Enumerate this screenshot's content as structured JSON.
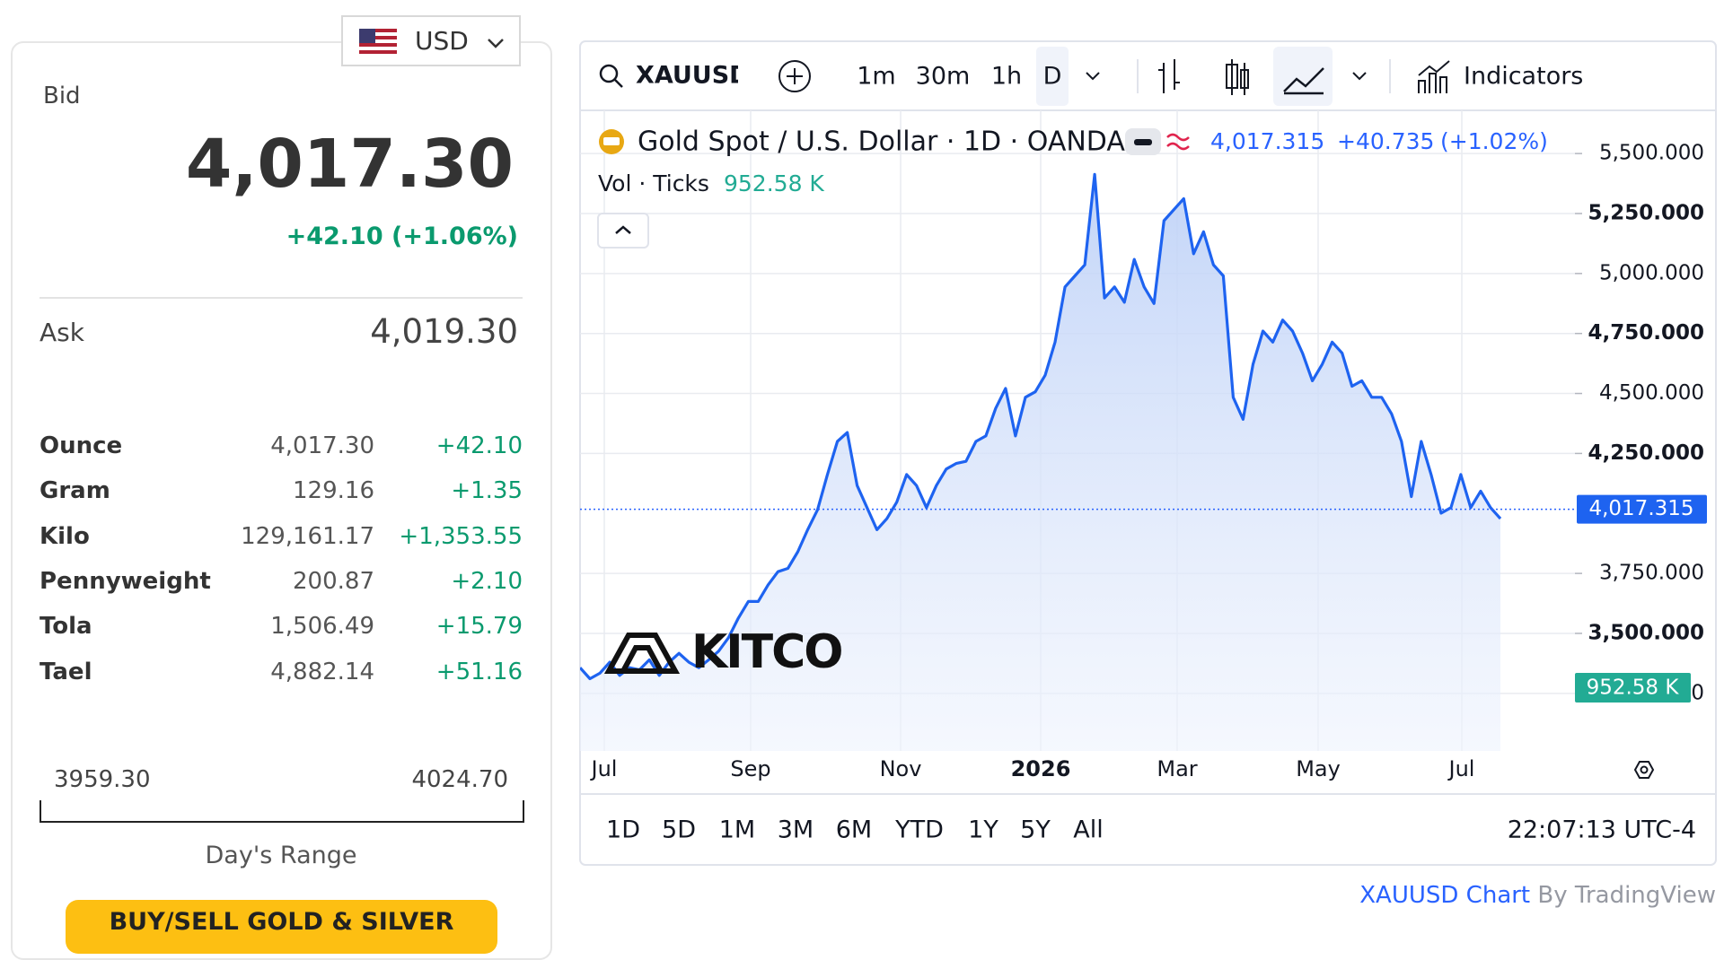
{
  "currency": "USD",
  "quote": {
    "bid_label": "Bid",
    "bid": "4,017.30",
    "change": "+42.10 (+1.06%)",
    "ask_label": "Ask",
    "ask": "4,019.30"
  },
  "table": {
    "rows": [
      [
        "Ounce",
        "4,017.30",
        "+42.10"
      ],
      [
        "Gram",
        "129.16",
        "+1.35"
      ],
      [
        "Kilo",
        "129,161.17",
        "+1,353.55"
      ],
      [
        "Pennyweight",
        "200.87",
        "+2.10"
      ],
      [
        "Tola",
        "1,506.49",
        "+15.79"
      ],
      [
        "Tael",
        "4,882.14",
        "+51.16"
      ]
    ]
  },
  "range": {
    "low": "3959.30",
    "high": "4024.70",
    "label": "Day's Range"
  },
  "button": "BUY/SELL GOLD & SILVER",
  "toolbar": {
    "symbol": "XAUUSD",
    "intervals": [
      "1m",
      "30m",
      "1h",
      "D"
    ],
    "indicators": "Indicators"
  },
  "chart_data": {
    "type": "line",
    "title": "Gold Spot / U.S. Dollar · 1D · OANDA",
    "change": "+40.735",
    "change_pct": "(+1.02%)",
    "volume_label": "Vol · Ticks",
    "volume": "952.58 K",
    "color": "#1e63f0",
    "values": [
      3357,
      3311,
      3334,
      3380,
      3325,
      3357,
      3348,
      3390,
      3325,
      3380,
      3417,
      3380,
      3357,
      3390,
      3426,
      3482,
      3564,
      3633,
      3633,
      3702,
      3757,
      3771,
      3840,
      3932,
      4015,
      4162,
      4300,
      4337,
      4116,
      4024,
      3932,
      3978,
      4047,
      4162,
      4116,
      4024,
      4116,
      4185,
      4208,
      4217,
      4300,
      4323,
      4438,
      4521,
      4323,
      4484,
      4507,
      4576,
      4714,
      4944,
      4990,
      5036,
      5413,
      4898,
      4944,
      4880,
      5059,
      4944,
      4875,
      5220,
      5266,
      5312,
      5082,
      5174,
      5036,
      4990,
      4484,
      4392,
      4622,
      4760,
      4714,
      4806,
      4760,
      4668,
      4553,
      4622,
      4714,
      4668,
      4530,
      4553,
      4484,
      4484,
      4415,
      4300,
      4070,
      4300,
      4162,
      4001,
      4024,
      4162,
      4024,
      4093,
      4024,
      3978
    ],
    "xlabels": [
      "Jul",
      "Sep",
      "Nov",
      "2026",
      "Mar",
      "May",
      "Jul"
    ],
    "ylim": [
      3010,
      5680
    ],
    "yticks": [
      {
        "value": 3250,
        "label": "3,250.000"
      },
      {
        "value": 3500,
        "label": "3,500.000"
      },
      {
        "value": 3750,
        "label": "3,750.000"
      },
      {
        "value": 4250,
        "label": "4,250.000"
      },
      {
        "value": 4500,
        "label": "4,500.000"
      },
      {
        "value": 4750,
        "label": "4,750.000"
      },
      {
        "value": 5000,
        "label": "5,000.000"
      },
      {
        "value": 5250,
        "label": "5,250.000"
      },
      {
        "value": 5500,
        "label": "5,500.000"
      }
    ],
    "price_label": {
      "value": 4017.315,
      "label": "4,017.315"
    },
    "grid": true
  },
  "logo": "KITCO",
  "ranges": [
    "1D",
    "5D",
    "1M",
    "3M",
    "6M",
    "YTD",
    "1Y",
    "5Y",
    "All"
  ],
  "time": "22:07:13 UTC-4",
  "footer": {
    "link": "XAUUSD Chart",
    "by": "By TradingView"
  }
}
